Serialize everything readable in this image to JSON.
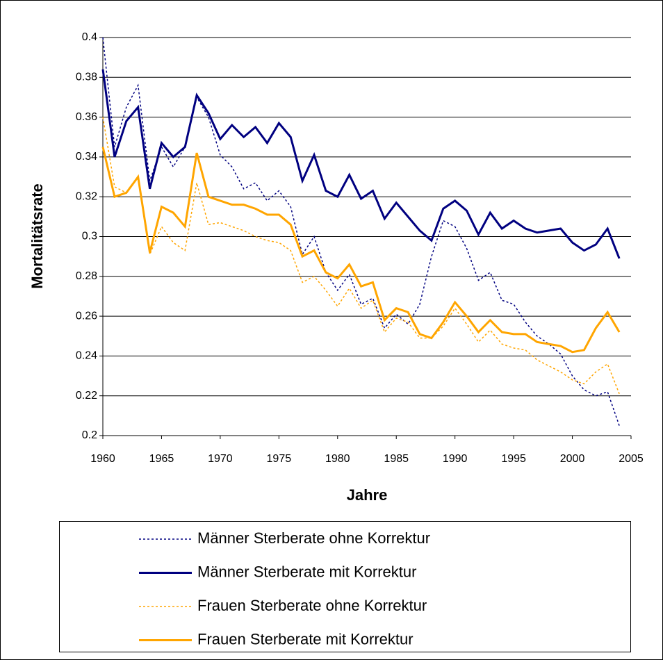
{
  "chart_data": {
    "type": "line",
    "x_label": "Jahre",
    "y_label": "Mortalitätsrate",
    "x": [
      1960,
      1961,
      1962,
      1963,
      1964,
      1965,
      1966,
      1967,
      1968,
      1969,
      1970,
      1971,
      1972,
      1973,
      1974,
      1975,
      1976,
      1977,
      1978,
      1979,
      1980,
      1981,
      1982,
      1983,
      1984,
      1985,
      1986,
      1987,
      1988,
      1989,
      1990,
      1991,
      1992,
      1993,
      1994,
      1995,
      1996,
      1997,
      1998,
      1999,
      2000,
      2001,
      2002,
      2003,
      2004
    ],
    "series": [
      {
        "name": "Männer Sterberate ohne Korrektur",
        "color": "#000080",
        "line_style": "dotted",
        "values": [
          0.4,
          0.345,
          0.365,
          0.376,
          0.328,
          0.345,
          0.335,
          0.345,
          0.37,
          0.36,
          0.341,
          0.335,
          0.324,
          0.327,
          0.318,
          0.323,
          0.315,
          0.291,
          0.3,
          0.282,
          0.273,
          0.281,
          0.266,
          0.269,
          0.254,
          0.261,
          0.256,
          0.266,
          0.29,
          0.308,
          0.305,
          0.294,
          0.278,
          0.282,
          0.268,
          0.266,
          0.257,
          0.25,
          0.246,
          0.241,
          0.23,
          0.223,
          0.22,
          0.222,
          0.205
        ]
      },
      {
        "name": "Männer Sterberate mit Korrektur",
        "color": "#000080",
        "line_style": "solid",
        "values": [
          0.384,
          0.34,
          0.358,
          0.365,
          0.324,
          0.347,
          0.34,
          0.345,
          0.371,
          0.362,
          0.349,
          0.356,
          0.35,
          0.355,
          0.347,
          0.357,
          0.35,
          0.328,
          0.341,
          0.323,
          0.32,
          0.331,
          0.319,
          0.323,
          0.309,
          0.317,
          0.31,
          0.303,
          0.298,
          0.314,
          0.318,
          0.313,
          0.301,
          0.312,
          0.304,
          0.308,
          0.304,
          0.302,
          0.303,
          0.304,
          0.297,
          0.293,
          0.296,
          0.304,
          0.289
        ]
      },
      {
        "name": "Frauen Sterberate ohne Korrektur",
        "color": "#ffa500",
        "line_style": "dotted",
        "values": [
          0.36,
          0.325,
          0.322,
          0.33,
          0.291,
          0.305,
          0.297,
          0.293,
          0.327,
          0.306,
          0.307,
          0.305,
          0.303,
          0.3,
          0.298,
          0.297,
          0.293,
          0.277,
          0.28,
          0.273,
          0.265,
          0.274,
          0.264,
          0.268,
          0.252,
          0.259,
          0.257,
          0.249,
          0.249,
          0.255,
          0.264,
          0.256,
          0.247,
          0.253,
          0.246,
          0.244,
          0.243,
          0.238,
          0.235,
          0.232,
          0.228,
          0.226,
          0.232,
          0.236,
          0.221
        ]
      },
      {
        "name": "Frauen Sterberate mit Korrektur",
        "color": "#ffa500",
        "line_style": "solid",
        "values": [
          0.345,
          0.32,
          0.322,
          0.33,
          0.292,
          0.315,
          0.312,
          0.305,
          0.342,
          0.32,
          0.318,
          0.316,
          0.316,
          0.314,
          0.311,
          0.311,
          0.306,
          0.29,
          0.293,
          0.282,
          0.279,
          0.286,
          0.275,
          0.277,
          0.258,
          0.264,
          0.262,
          0.251,
          0.249,
          0.257,
          0.267,
          0.26,
          0.252,
          0.258,
          0.252,
          0.251,
          0.251,
          0.247,
          0.246,
          0.245,
          0.242,
          0.243,
          0.254,
          0.262,
          0.252
        ]
      }
    ],
    "xlim": [
      1960,
      2005
    ],
    "xticks": [
      1960,
      1965,
      1970,
      1975,
      1980,
      1985,
      1990,
      1995,
      2000,
      2005
    ],
    "ylim": [
      0.2,
      0.4
    ],
    "yticks": [
      0.2,
      0.22,
      0.24,
      0.26,
      0.28,
      0.3,
      0.32,
      0.34,
      0.36,
      0.38,
      0.4
    ],
    "grid": true,
    "legend_position": "bottom"
  }
}
